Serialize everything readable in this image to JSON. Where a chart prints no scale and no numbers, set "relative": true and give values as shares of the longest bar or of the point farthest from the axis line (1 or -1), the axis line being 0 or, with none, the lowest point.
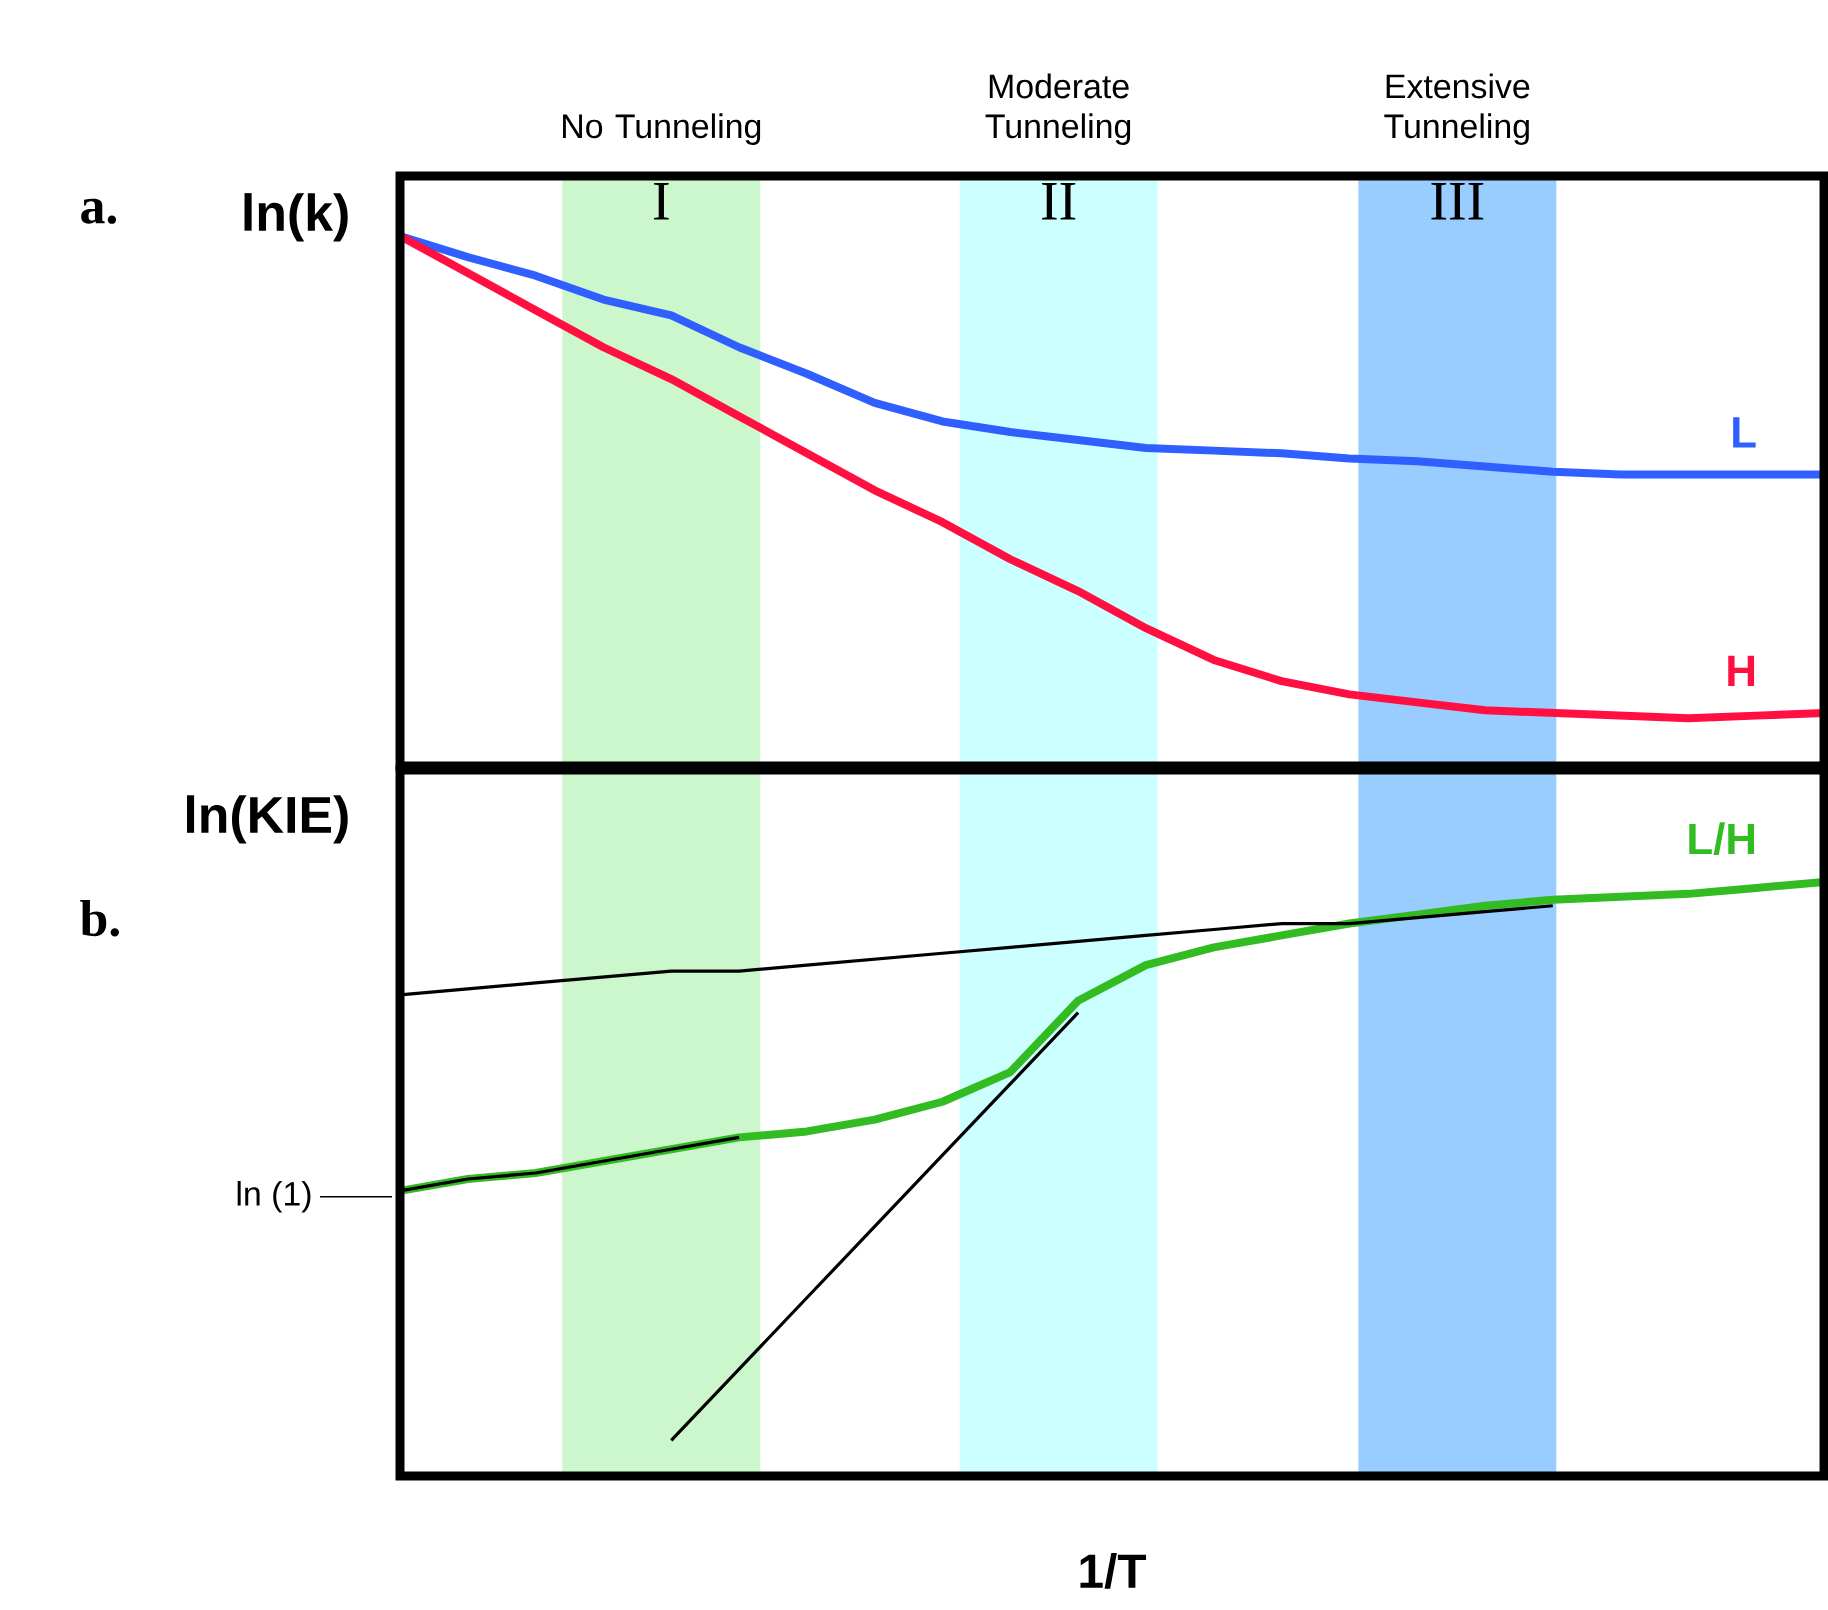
{
  "chart_data": [
    {
      "type": "line",
      "relative": true,
      "ylabel": "ln(k)",
      "tick_labels": false,
      "categories": [
        null,
        null,
        null,
        null,
        null,
        null,
        null,
        null,
        null,
        null,
        null,
        null,
        null,
        null,
        null,
        null,
        null,
        null,
        null,
        null,
        null,
        null
      ],
      "series": [
        {
          "name": "L",
          "color": "#2f5fff",
          "values": [
            1,
            0.96,
            0.925,
            0.88,
            0.85,
            0.79,
            0.74,
            0.685,
            0.65,
            0.63,
            0.615,
            0.6,
            0.595,
            0.59,
            0.58,
            0.575,
            0.565,
            0.555,
            0.55,
            0.55,
            0.55,
            0.55
          ]
        },
        {
          "name": "H",
          "color": "#ff1040",
          "values": [
            1,
            0.93,
            0.86,
            0.79,
            0.73,
            0.66,
            0.59,
            0.52,
            0.46,
            0.39,
            0.33,
            0.26,
            0.2,
            0.16,
            0.135,
            0.12,
            0.105,
            0.1,
            0.095,
            0.09,
            0.095,
            0.1
          ]
        }
      ],
      "annotations": [
        "a.",
        "I",
        "II",
        "III",
        "No Tunneling",
        "Moderate Tunneling",
        "Extensive Tunneling"
      ]
    },
    {
      "type": "line",
      "relative": true,
      "ylabel": "ln(KIE)",
      "xlabel": "1/T",
      "tick_labels": false,
      "categories": [
        null,
        null,
        null,
        null,
        null,
        null,
        null,
        null,
        null,
        null,
        null,
        null,
        null,
        null,
        null,
        null,
        null,
        null,
        null,
        null,
        null,
        null
      ],
      "series": [
        {
          "name": "L/H",
          "color": "#33bb22",
          "values": [
            0.48,
            0.5,
            0.51,
            0.53,
            0.55,
            0.57,
            0.58,
            0.6,
            0.63,
            0.68,
            0.8,
            0.86,
            0.89,
            0.91,
            0.93,
            0.945,
            0.96,
            0.97,
            0.975,
            0.98,
            0.99,
            1
          ]
        },
        {
          "color": "#000000",
          "values": [
            0.81,
            0.82,
            0.83,
            0.84,
            0.85,
            0.85,
            0.86,
            0.87,
            0.88,
            0.89,
            0.9,
            0.91,
            0.92,
            0.93,
            0.93,
            0.94,
            0.95,
            0.96,
            null,
            null,
            null,
            null
          ]
        },
        {
          "color": "#000000",
          "values": [
            null,
            null,
            null,
            null,
            0.06,
            0.18,
            0.3,
            0.42,
            0.54,
            0.66,
            0.78,
            null,
            null,
            null,
            null,
            null,
            null,
            null,
            null,
            null,
            null,
            null
          ]
        },
        {
          "color": "#000000",
          "values": [
            0.48,
            0.5,
            0.51,
            0.53,
            0.55,
            0.57,
            null,
            null,
            null,
            null,
            null,
            null,
            null,
            null,
            null,
            null,
            null,
            null,
            null,
            null,
            null,
            null
          ]
        }
      ],
      "ref_lines": [
        {
          "axis": "y",
          "value": 0.47,
          "label": "ln (1)"
        }
      ],
      "annotations": [
        "b."
      ]
    }
  ]
}
